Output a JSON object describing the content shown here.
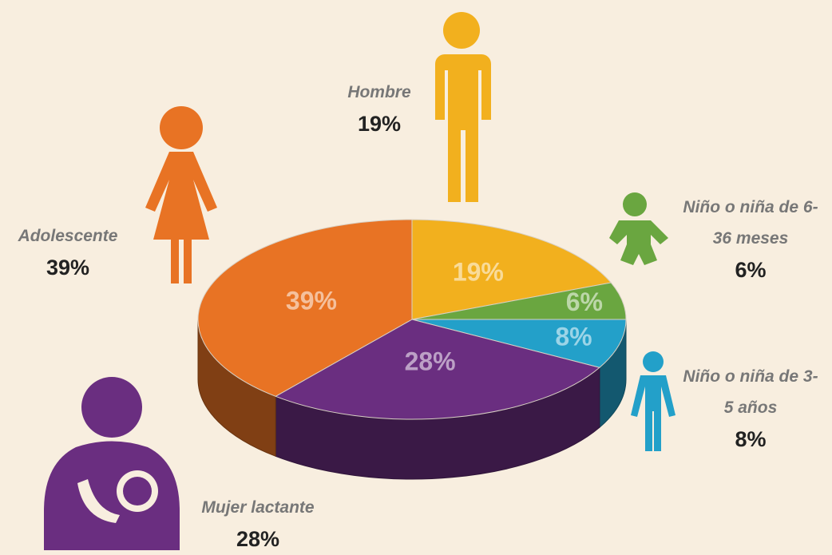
{
  "chart_data": {
    "type": "pie",
    "categories": [
      "Hombre",
      "Niño o niña de 6-36 meses",
      "Niño o niña de 3-5 años",
      "Mujer lactante",
      "Adolescente"
    ],
    "values": [
      19,
      6,
      8,
      28,
      39
    ],
    "value_labels": [
      "19%",
      "6%",
      "8%",
      "28%",
      "39%"
    ],
    "colors": [
      "#f2b01e",
      "#6aa640",
      "#23a0c9",
      "#6a2e80",
      "#e87324"
    ]
  }
}
